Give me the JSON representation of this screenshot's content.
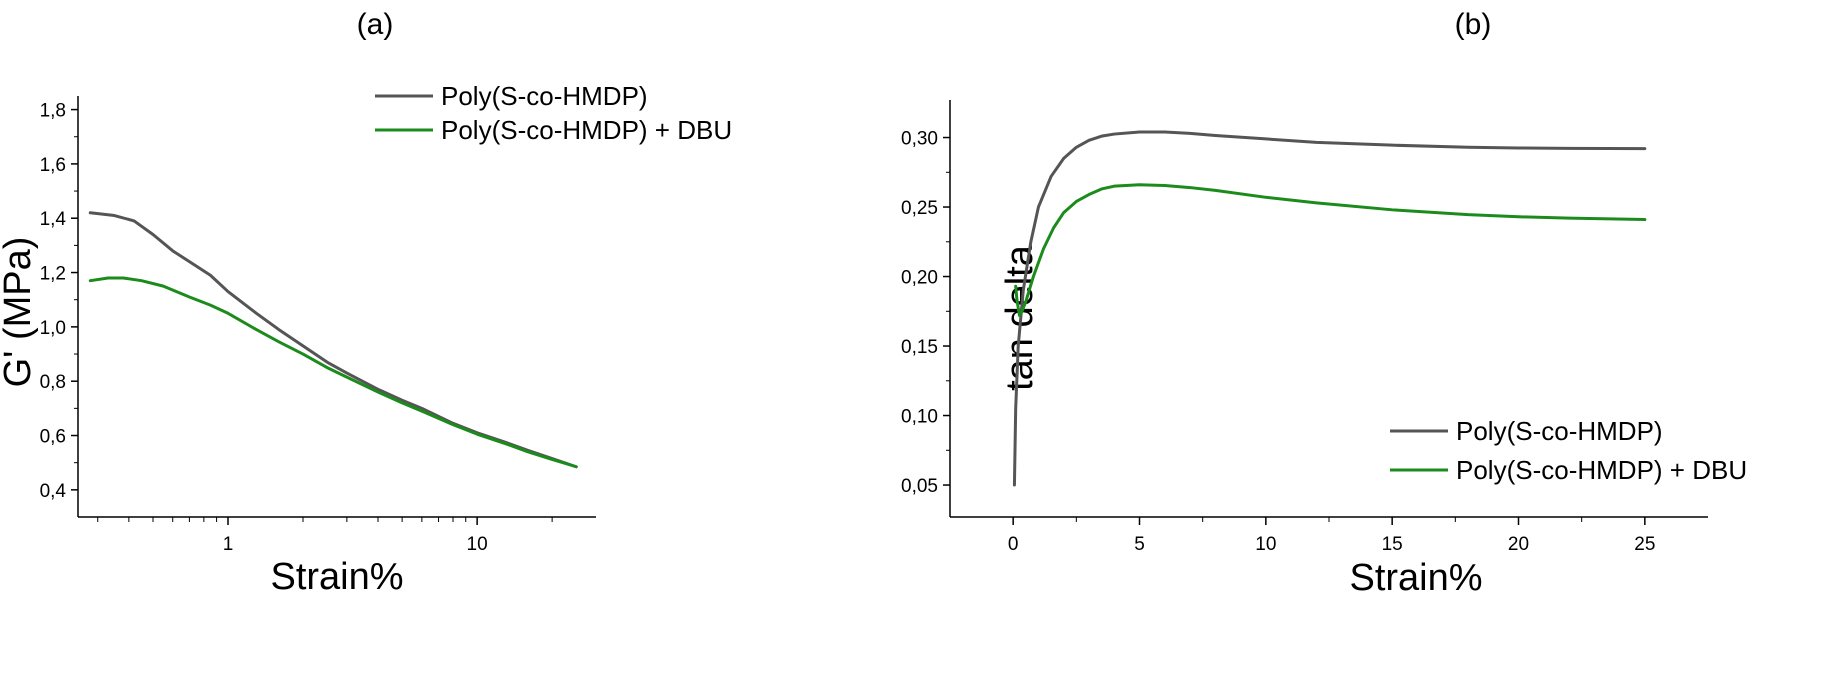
{
  "colors": {
    "series_1": "#555555",
    "series_2": "#1b8c1b",
    "axis": "#000000"
  },
  "chart_data": [
    {
      "type": "line",
      "panel_label": "(a)",
      "xlabel": "Strain%",
      "ylabel": "G' (MPa)",
      "xscale": "log",
      "xlim": [
        0.25,
        30
      ],
      "ylim": [
        0.3,
        1.85
      ],
      "xticks": [
        {
          "value": 1,
          "label": "1"
        },
        {
          "value": 10,
          "label": "10"
        }
      ],
      "yticks": [
        {
          "value": 0.4,
          "label": "0,4"
        },
        {
          "value": 0.6,
          "label": "0,6"
        },
        {
          "value": 0.8,
          "label": "0,8"
        },
        {
          "value": 1.0,
          "label": "1,0"
        },
        {
          "value": 1.2,
          "label": "1,2"
        },
        {
          "value": 1.4,
          "label": "1,4"
        },
        {
          "value": 1.6,
          "label": "1,6"
        },
        {
          "value": 1.8,
          "label": "1,8"
        }
      ],
      "legend_position": "top-right",
      "series": [
        {
          "name": "Poly(S-co-HMDP)",
          "color": "#555555",
          "x": [
            0.28,
            0.35,
            0.42,
            0.5,
            0.6,
            0.7,
            0.85,
            1.0,
            1.3,
            1.6,
            2.0,
            2.5,
            3.0,
            4.0,
            5.0,
            6.0,
            8.0,
            10.0,
            13.0,
            16.0,
            20.0,
            25.0
          ],
          "y": [
            1.42,
            1.41,
            1.39,
            1.34,
            1.28,
            1.24,
            1.19,
            1.13,
            1.05,
            0.99,
            0.93,
            0.87,
            0.83,
            0.77,
            0.73,
            0.7,
            0.645,
            0.61,
            0.575,
            0.545,
            0.515,
            0.485
          ]
        },
        {
          "name": "Poly(S-co-HMDP) + DBU",
          "color": "#1b8c1b",
          "x": [
            0.28,
            0.33,
            0.38,
            0.45,
            0.55,
            0.7,
            0.85,
            1.0,
            1.3,
            1.6,
            2.0,
            2.5,
            3.0,
            4.0,
            5.0,
            6.0,
            8.0,
            10.0,
            13.0,
            16.0,
            20.0,
            25.0
          ],
          "y": [
            1.17,
            1.18,
            1.18,
            1.17,
            1.15,
            1.11,
            1.08,
            1.05,
            0.99,
            0.945,
            0.9,
            0.85,
            0.815,
            0.76,
            0.72,
            0.69,
            0.64,
            0.605,
            0.57,
            0.54,
            0.512,
            0.485
          ]
        }
      ]
    },
    {
      "type": "line",
      "panel_label": "(b)",
      "xlabel": "Strain%",
      "ylabel": "tan delta",
      "xscale": "linear",
      "xlim": [
        -2.5,
        27.5
      ],
      "ylim": [
        0.027,
        0.327
      ],
      "xticks": [
        {
          "value": 0,
          "label": "0"
        },
        {
          "value": 5,
          "label": "5"
        },
        {
          "value": 10,
          "label": "10"
        },
        {
          "value": 15,
          "label": "15"
        },
        {
          "value": 20,
          "label": "20"
        },
        {
          "value": 25,
          "label": "25"
        }
      ],
      "yticks": [
        {
          "value": 0.05,
          "label": "0,05"
        },
        {
          "value": 0.1,
          "label": "0,10"
        },
        {
          "value": 0.15,
          "label": "0,15"
        },
        {
          "value": 0.2,
          "label": "0,20"
        },
        {
          "value": 0.25,
          "label": "0,25"
        },
        {
          "value": 0.3,
          "label": "0,30"
        }
      ],
      "legend_position": "bottom-right",
      "series": [
        {
          "name": "Poly(S-co-HMDP)",
          "color": "#555555",
          "x": [
            0.05,
            0.1,
            0.2,
            0.4,
            0.7,
            1.0,
            1.5,
            2.0,
            2.5,
            3.0,
            3.5,
            4.0,
            5.0,
            6.0,
            7.0,
            8.0,
            10.0,
            12.0,
            15.0,
            18.0,
            20.0,
            22.0,
            25.0
          ],
          "y": [
            0.05,
            0.105,
            0.15,
            0.19,
            0.225,
            0.25,
            0.272,
            0.285,
            0.293,
            0.298,
            0.301,
            0.3025,
            0.304,
            0.304,
            0.303,
            0.3015,
            0.299,
            0.2965,
            0.2945,
            0.293,
            0.2925,
            0.2922,
            0.292
          ]
        },
        {
          "name": "Poly(S-co-HMDP) + DBU",
          "color": "#1b8c1b",
          "x": [
            0.1,
            0.15,
            0.25,
            0.35,
            0.5,
            0.8,
            1.2,
            1.6,
            2.0,
            2.5,
            3.0,
            3.5,
            4.0,
            5.0,
            6.0,
            7.0,
            8.0,
            10.0,
            12.0,
            15.0,
            18.0,
            20.0,
            22.0,
            25.0
          ],
          "y": [
            0.193,
            0.183,
            0.172,
            0.175,
            0.182,
            0.2,
            0.22,
            0.235,
            0.246,
            0.254,
            0.259,
            0.263,
            0.265,
            0.266,
            0.2655,
            0.264,
            0.262,
            0.257,
            0.253,
            0.248,
            0.2445,
            0.243,
            0.242,
            0.241
          ]
        }
      ]
    }
  ]
}
